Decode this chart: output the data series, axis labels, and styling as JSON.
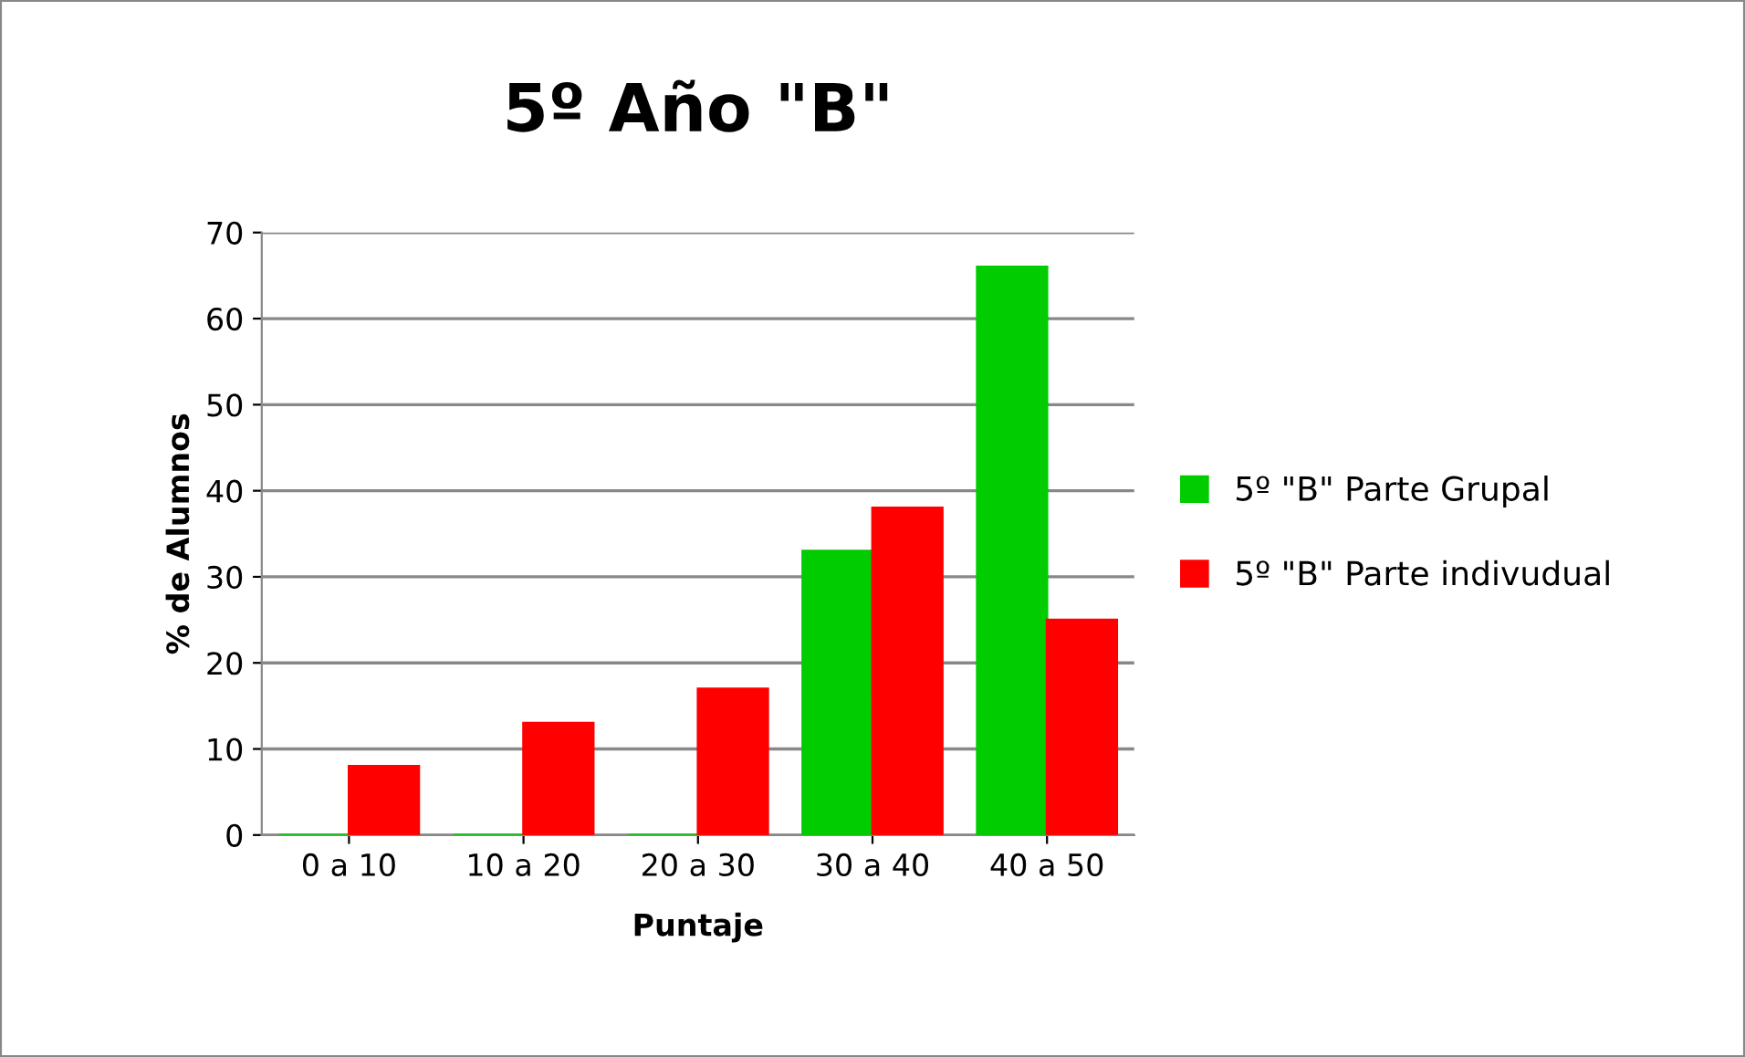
{
  "chart_data": {
    "type": "bar",
    "title": "5º Año \"B\"",
    "xlabel": "Puntaje",
    "ylabel": "% de Alumnos",
    "categories": [
      "0 a 10",
      "10 a 20",
      "20 a 30",
      "30 a 40",
      "40 a 50"
    ],
    "series": [
      {
        "name": "5º \"B\" Parte Grupal",
        "color": "#00cc00",
        "values": [
          0,
          0,
          0,
          33,
          66
        ]
      },
      {
        "name": "5º \"B\" Parte indivudual",
        "color": "#ff0000",
        "values": [
          8,
          13,
          17,
          38,
          25
        ]
      }
    ],
    "ylim": [
      0,
      70
    ],
    "yticks": [
      0,
      10,
      20,
      30,
      40,
      50,
      60,
      70
    ],
    "grid": "y",
    "legend": "right"
  }
}
